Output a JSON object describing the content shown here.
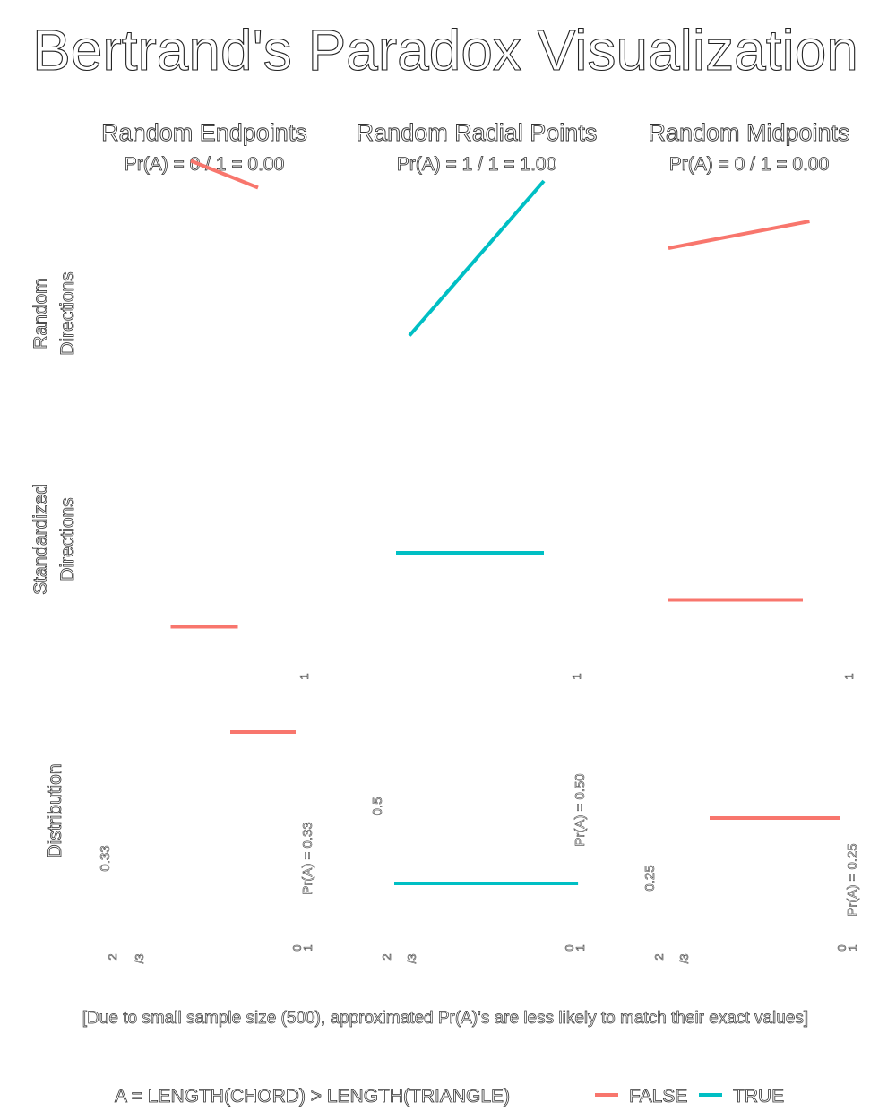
{
  "title": "Bertrand's Paradox Visualization",
  "caption": "[Due to small sample size (500), approximated Pr(A)'s are less likely to match their exact values]",
  "legend": {
    "title": "A = LENGTH(CHORD) > LENGTH(TRIANGLE)",
    "entries": [
      {
        "label": "FALSE",
        "color": "#F8766D"
      },
      {
        "label": "TRUE",
        "color": "#00BFC4"
      }
    ]
  },
  "columns": [
    {
      "title": "Random Endpoints",
      "subtitle": "Pr(A) = 0 / 1 = 0.00"
    },
    {
      "title": "Random Radial Points",
      "subtitle": "Pr(A) = 1 / 1 = 1.00"
    },
    {
      "title": "Random Midpoints",
      "subtitle": "Pr(A) = 0 / 1 = 0.00"
    }
  ],
  "rows": [
    {
      "label_line1": "Random",
      "label_line2": "Directions"
    },
    {
      "label_line1": "Standardized",
      "label_line2": "Directions"
    },
    {
      "label_line1": "Distribution",
      "label_line2": ""
    }
  ],
  "chart_data": {
    "type": "line",
    "colors": {
      "FALSE": "#F8766D",
      "TRUE": "#00BFC4"
    },
    "panels": [
      {
        "row": "Random Directions",
        "col": "Random Endpoints",
        "A": "FALSE",
        "x": [
          -0.1,
          0.4
        ],
        "y": [
          0.95,
          0.75
        ]
      },
      {
        "row": "Random Directions",
        "col": "Random Radial Points",
        "A": "TRUE",
        "x": [
          -0.5,
          0.5
        ],
        "y": [
          -0.35,
          0.8
        ]
      },
      {
        "row": "Random Directions",
        "col": "Random Midpoints",
        "A": "FALSE",
        "x": [
          -0.6,
          0.45
        ],
        "y": [
          0.3,
          0.5
        ]
      },
      {
        "row": "Standardized Directions",
        "col": "Random Endpoints",
        "A": "FALSE",
        "x": [
          -0.25,
          0.25
        ],
        "y": [
          -0.65,
          -0.65
        ]
      },
      {
        "row": "Standardized Directions",
        "col": "Random Radial Points",
        "A": "TRUE",
        "x": [
          -0.6,
          0.5
        ],
        "y": [
          -0.1,
          -0.1
        ]
      },
      {
        "row": "Standardized Directions",
        "col": "Random Midpoints",
        "A": "FALSE",
        "x": [
          -0.6,
          0.4
        ],
        "y": [
          -0.45,
          -0.45
        ]
      },
      {
        "row": "Distribution",
        "col": "Random Endpoints",
        "A": "FALSE",
        "x": [
          1.2,
          1.6
        ],
        "y": [
          0.95,
          0.95
        ],
        "tick_labels": [
          "2",
          "/3",
          "0",
          "1"
        ],
        "marker_label": "0.33",
        "annotation": "Pr(A) = 0.33"
      },
      {
        "row": "Distribution",
        "col": "Random Radial Points",
        "A": "TRUE",
        "x": [
          0.05,
          0.95
        ],
        "y": [
          0.3,
          0.3
        ],
        "tick_labels": [
          "2",
          "/3",
          "0",
          "1"
        ],
        "marker_label": "0.5",
        "annotation": "Pr(A) = 0.50"
      },
      {
        "row": "Distribution",
        "col": "Random Midpoints",
        "A": "FALSE",
        "x": [
          0.4,
          1.0
        ],
        "y": [
          0.55,
          0.55
        ],
        "tick_labels": [
          "2",
          "/3",
          "0",
          "1"
        ],
        "marker_label": "0.25",
        "annotation": "Pr(A) = 0.25"
      }
    ]
  }
}
